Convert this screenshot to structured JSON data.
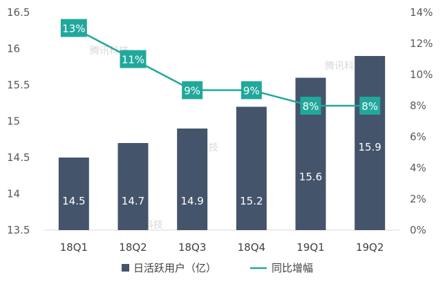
{
  "chart_data": {
    "type": "bar",
    "title": "",
    "categories": [
      "18Q1",
      "18Q2",
      "18Q3",
      "18Q4",
      "19Q1",
      "19Q2"
    ],
    "series": [
      {
        "name": "日活跃用户（亿）",
        "kind": "bar",
        "axis": "left",
        "color": "#44546A",
        "values": [
          14.5,
          14.7,
          14.9,
          15.2,
          15.6,
          15.9
        ],
        "labels": [
          "14.5",
          "14.7",
          "14.9",
          "15.2",
          "15.6",
          "15.9"
        ]
      },
      {
        "name": "同比增幅",
        "kind": "line",
        "axis": "right",
        "color": "#21A89B",
        "values": [
          0.13,
          0.11,
          0.09,
          0.09,
          0.08,
          0.08
        ],
        "labels": [
          "13%",
          "11%",
          "9%",
          "9%",
          "8%",
          "8%"
        ]
      }
    ],
    "left_axis": {
      "ylim": [
        13.5,
        16.5
      ],
      "ticks": [
        13.5,
        14,
        14.5,
        15,
        15.5,
        16,
        16.5
      ],
      "tick_labels": [
        "13.5",
        "14",
        "14.5",
        "15",
        "15.5",
        "16",
        "16.5"
      ]
    },
    "right_axis": {
      "ylim": [
        0,
        0.14
      ],
      "ticks": [
        0,
        0.02,
        0.04,
        0.06,
        0.08,
        0.1,
        0.12,
        0.14
      ],
      "tick_labels": [
        "0%",
        "2%",
        "4%",
        "6%",
        "8%",
        "10%",
        "12%",
        "14%"
      ]
    },
    "grid": false,
    "legend": {
      "position": "bottom",
      "entries": [
        "日活跃用户（亿）",
        "同比增幅"
      ]
    },
    "watermark": "腾讯科技"
  }
}
